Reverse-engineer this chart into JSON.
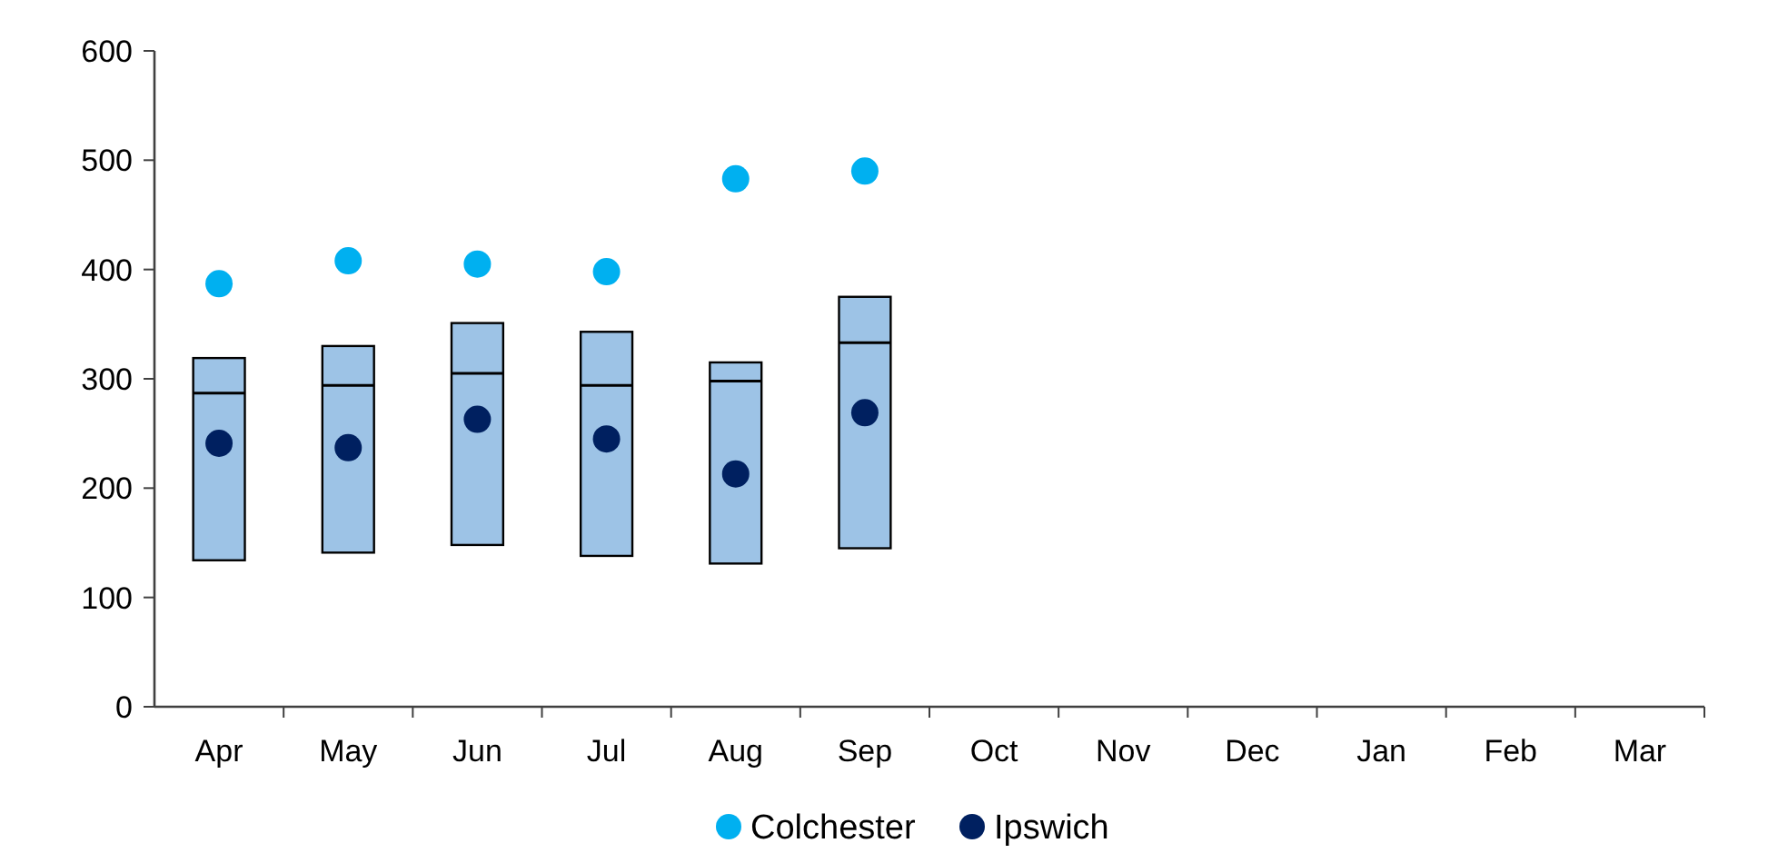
{
  "chart_data": {
    "type": "box",
    "categories": [
      "Apr",
      "May",
      "Jun",
      "Jul",
      "Aug",
      "Sep",
      "Oct",
      "Nov",
      "Dec",
      "Jan",
      "Feb",
      "Mar"
    ],
    "series": [
      {
        "color": "#9dc3e6",
        "boxes": [
          {
            "low": 134,
            "q1": 134,
            "median": 287,
            "q3": 319,
            "high": 319
          },
          {
            "low": 141,
            "q1": 141,
            "median": 294,
            "q3": 330,
            "high": 330
          },
          {
            "low": 148,
            "q1": 148,
            "median": 305,
            "q3": 351,
            "high": 351
          },
          {
            "low": 138,
            "q1": 138,
            "median": 294,
            "q3": 343,
            "high": 343
          },
          {
            "low": 131,
            "q1": 131,
            "median": 298,
            "q3": 315,
            "high": 315
          },
          {
            "low": 145,
            "q1": 145,
            "median": 333,
            "q3": 375,
            "high": 375
          },
          null,
          null,
          null,
          null,
          null,
          null
        ]
      },
      {
        "type": "scatter",
        "name": "Colchester",
        "color": "#00b0f0",
        "values": [
          387,
          408,
          405,
          398,
          483,
          490,
          null,
          null,
          null,
          null,
          null,
          null
        ]
      },
      {
        "type": "scatter",
        "name": "Ipswich",
        "color": "#002060",
        "values": [
          241,
          237,
          263,
          245,
          213,
          269,
          null,
          null,
          null,
          null,
          null,
          null
        ]
      }
    ],
    "ylim": [
      0,
      600
    ],
    "yticks": [
      0,
      100,
      200,
      300,
      400,
      500,
      600
    ],
    "grid": false,
    "legend": "bottom",
    "marker": "circle"
  }
}
